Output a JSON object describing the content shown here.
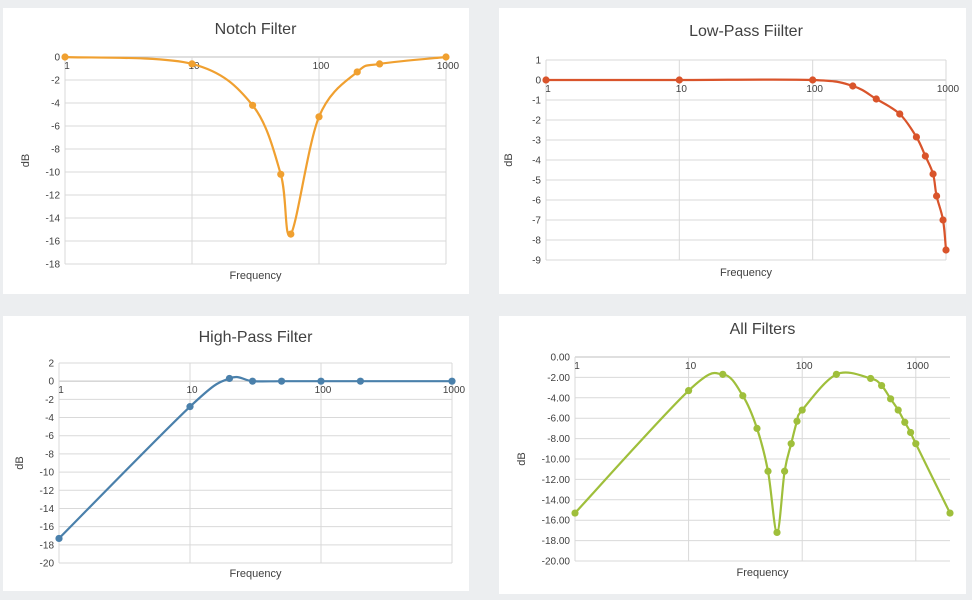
{
  "chart_data": [
    {
      "type": "scatter",
      "title": "Notch Filter",
      "xlabel": "Frequency",
      "ylabel": "dB",
      "x_scale": "log",
      "xlim": [
        1,
        1000
      ],
      "ylim": [
        -18,
        0
      ],
      "y_ticks": [
        0,
        -2,
        -4,
        -6,
        -8,
        -10,
        -12,
        -14,
        -16,
        -18
      ],
      "y_tick_labels": [
        "0",
        "-2",
        "-4",
        "-6",
        "-8",
        "-10",
        "-12",
        "-14",
        "-16",
        "-18"
      ],
      "x_ticks": [
        1,
        10,
        100,
        1000
      ],
      "x_tick_labels": [
        "1",
        "10",
        "100",
        "1000"
      ],
      "color": "#f0a030",
      "series": [
        {
          "x": [
            1,
            10,
            30,
            50,
            60,
            100,
            200,
            300,
            1000
          ],
          "y": [
            0,
            -0.6,
            -4.2,
            -10.2,
            -15.4,
            -5.2,
            -1.3,
            -0.6,
            0
          ]
        }
      ]
    },
    {
      "type": "scatter",
      "title": "Low-Pass Fiilter",
      "xlabel": "Frequency",
      "ylabel": "dB",
      "x_scale": "log",
      "xlim": [
        1,
        1000
      ],
      "ylim": [
        -9,
        1
      ],
      "y_ticks": [
        1,
        0,
        -1,
        -2,
        -3,
        -4,
        -5,
        -6,
        -7,
        -8,
        -9
      ],
      "y_tick_labels": [
        "1",
        "0",
        "-1",
        "-2",
        "-3",
        "-4",
        "-5",
        "-6",
        "-7",
        "-8",
        "-9"
      ],
      "x_ticks": [
        1,
        10,
        100,
        1000
      ],
      "x_tick_labels": [
        "1",
        "10",
        "100",
        "1000"
      ],
      "color": "#d9542b",
      "series": [
        {
          "x": [
            1,
            10,
            100,
            200,
            300,
            450,
            600,
            700,
            800,
            850,
            950,
            1000
          ],
          "y": [
            0,
            0,
            0,
            -0.3,
            -0.95,
            -1.7,
            -2.85,
            -3.8,
            -4.7,
            -5.8,
            -7.0,
            -8.5
          ]
        }
      ]
    },
    {
      "type": "scatter",
      "title": "High-Pass Filter",
      "xlabel": "Frequency",
      "ylabel": "dB",
      "x_scale": "log",
      "xlim": [
        1,
        1000
      ],
      "ylim": [
        -20,
        2
      ],
      "y_ticks": [
        2,
        0,
        -2,
        -4,
        -6,
        -8,
        -10,
        -12,
        -14,
        -16,
        -18,
        -20
      ],
      "y_tick_labels": [
        "2",
        "0",
        "-2",
        "-4",
        "-6",
        "-8",
        "-10",
        "-12",
        "-14",
        "-16",
        "-18",
        "-20"
      ],
      "x_ticks": [
        1,
        10,
        100,
        1000
      ],
      "x_tick_labels": [
        "1",
        "10",
        "100",
        "1000"
      ],
      "color": "#4a80ab",
      "series": [
        {
          "x": [
            1,
            10,
            20,
            30,
            50,
            100,
            200,
            1000
          ],
          "y": [
            -17.3,
            -2.8,
            0.3,
            0,
            0,
            0,
            0,
            0
          ]
        }
      ]
    },
    {
      "type": "scatter",
      "title": "All Filters",
      "xlabel": "Frequency",
      "ylabel": "dB",
      "x_scale": "log",
      "xlim": [
        1,
        2000
      ],
      "ylim": [
        -20,
        0
      ],
      "y_ticks": [
        0,
        -2,
        -4,
        -6,
        -8,
        -10,
        -12,
        -14,
        -16,
        -18,
        -20
      ],
      "y_tick_labels": [
        "0.00",
        "-2.00",
        "-4.00",
        "-6.00",
        "-8.00",
        "-10.00",
        "-12.00",
        "-14.00",
        "-16.00",
        "-18.00",
        "-20.00"
      ],
      "x_ticks": [
        1,
        10,
        100,
        1000
      ],
      "x_tick_labels": [
        "1",
        "10",
        "100",
        "1000"
      ],
      "color": "#9fbf3b",
      "series": [
        {
          "x": [
            1,
            10,
            20,
            30,
            40,
            50,
            60,
            70,
            80,
            90,
            100,
            200,
            400,
            500,
            600,
            700,
            800,
            900,
            1000,
            2000
          ],
          "y": [
            -15.3,
            -3.3,
            -1.7,
            -3.8,
            -7.0,
            -11.2,
            -17.2,
            -11.2,
            -8.5,
            -6.3,
            -5.2,
            -1.7,
            -2.1,
            -2.8,
            -4.1,
            -5.2,
            -6.4,
            -7.4,
            -8.5,
            -15.3
          ]
        }
      ]
    }
  ]
}
